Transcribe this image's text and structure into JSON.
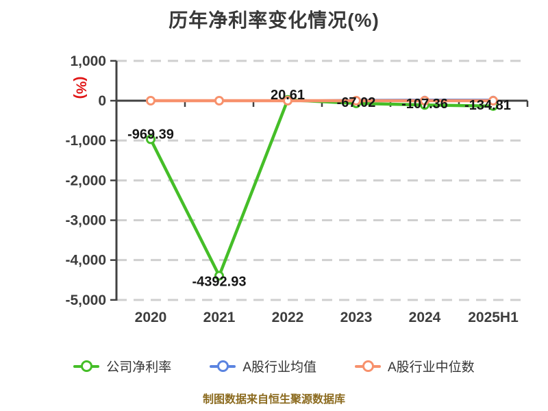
{
  "title": "历年净利率变化情况(%)",
  "y_axis_unit": "(%)",
  "footer": {
    "text": "制图数据来自恒生聚源数据库",
    "color": "#8b6a1e"
  },
  "palette": {
    "axis": "#424242",
    "grid": "#cfcfcf",
    "tick_label": "#3d3d3d",
    "data_label": "#161616",
    "unit_red": "#e01616",
    "marker_fill": "#ffffff"
  },
  "chart_data": {
    "type": "line",
    "categories": [
      "2020",
      "2021",
      "2022",
      "2023",
      "2024",
      "2025H1"
    ],
    "series": [
      {
        "name": "公司净利率",
        "color": "#45be28",
        "values": [
          -969.39,
          -4392.93,
          20.61,
          -67.02,
          -107.36,
          -134.81
        ],
        "labels": [
          "-969.39",
          "-4392.93",
          "20.61",
          "-67.02",
          "-107.36",
          "-134.81"
        ],
        "approx": false
      },
      {
        "name": "A股行业均值",
        "color": "#5b84e0",
        "values": [
          0,
          0,
          0,
          20,
          25,
          25
        ],
        "labels": [],
        "approx": true
      },
      {
        "name": "A股行业中位数",
        "color": "#f7916c",
        "values": [
          0,
          0,
          0,
          0,
          0,
          0
        ],
        "labels": [],
        "approx": true
      }
    ],
    "ylim": [
      -5000,
      1000
    ],
    "yticks": [
      1000,
      0,
      -1000,
      -2000,
      -3000,
      -4000,
      -5000
    ],
    "ytick_labels": [
      "1,000",
      "0",
      "-1,000",
      "-2,000",
      "-3,000",
      "-4,000",
      "-5,000"
    ],
    "grid": "dashed",
    "legend_position": "bottom",
    "ylabel": "(%)",
    "xlabel": ""
  }
}
